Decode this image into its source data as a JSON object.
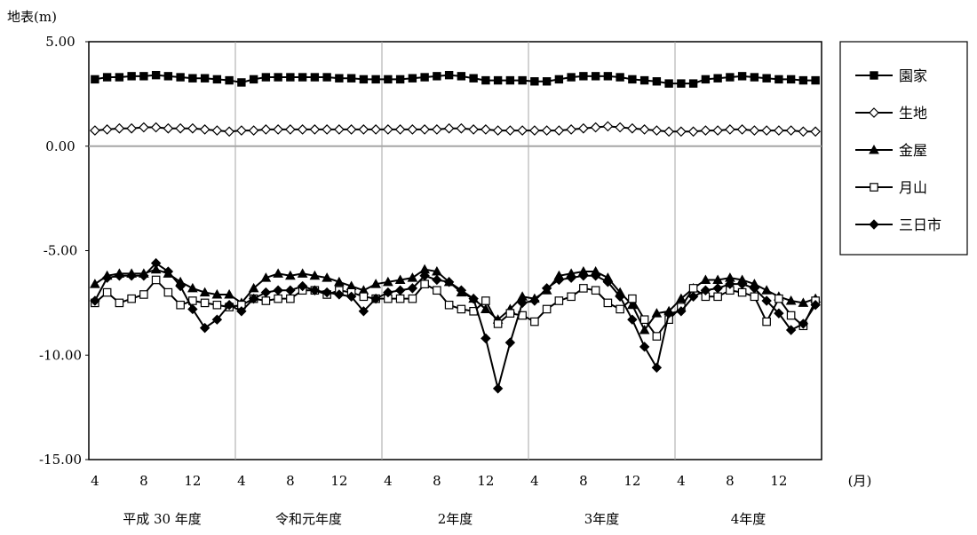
{
  "chart_data": {
    "type": "line",
    "ylabel": "地表(m)",
    "ylim": [
      -15,
      5
    ],
    "yticks": [
      {
        "value": 5,
        "label": "5.00"
      },
      {
        "value": 0,
        "label": "0.00"
      },
      {
        "value": -5,
        "label": "-5.00"
      },
      {
        "value": -10,
        "label": "-10.00"
      },
      {
        "value": -15,
        "label": "-15.00"
      }
    ],
    "x_unit": "(月)",
    "months": [
      4,
      5,
      6,
      7,
      8,
      9,
      10,
      11,
      12,
      1,
      2,
      3,
      4,
      5,
      6,
      7,
      8,
      9,
      10,
      11,
      12,
      1,
      2,
      3,
      4,
      5,
      6,
      7,
      8,
      9,
      10,
      11,
      12,
      1,
      2,
      3,
      4,
      5,
      6,
      7,
      8,
      9,
      10,
      11,
      12,
      1,
      2,
      3,
      4,
      5,
      6,
      7,
      8,
      9,
      10,
      11,
      12,
      1,
      2,
      3
    ],
    "xticks": [
      {
        "index": 0,
        "label": "4"
      },
      {
        "index": 4,
        "label": "8"
      },
      {
        "index": 8,
        "label": "12"
      },
      {
        "index": 12,
        "label": "4"
      },
      {
        "index": 16,
        "label": "8"
      },
      {
        "index": 20,
        "label": "12"
      },
      {
        "index": 24,
        "label": "4"
      },
      {
        "index": 28,
        "label": "8"
      },
      {
        "index": 32,
        "label": "12"
      },
      {
        "index": 36,
        "label": "4"
      },
      {
        "index": 40,
        "label": "8"
      },
      {
        "index": 44,
        "label": "12"
      },
      {
        "index": 48,
        "label": "4"
      },
      {
        "index": 52,
        "label": "8"
      },
      {
        "index": 56,
        "label": "12"
      }
    ],
    "fiscal_years": [
      {
        "label": "平成 30 年度",
        "start": 0,
        "end": 12
      },
      {
        "label": "令和元年度",
        "start": 12,
        "end": 24
      },
      {
        "label": "2年度",
        "start": 24,
        "end": 36
      },
      {
        "label": "3年度",
        "start": 36,
        "end": 48
      },
      {
        "label": "4年度",
        "start": 48,
        "end": 60
      }
    ],
    "year_dividers": [
      12,
      24,
      36,
      48
    ],
    "grid": false,
    "zero_line": true,
    "legend_position": "right",
    "series": [
      {
        "name": "園家",
        "marker": "square-filled",
        "values": [
          3.2,
          3.3,
          3.3,
          3.35,
          3.35,
          3.4,
          3.35,
          3.3,
          3.25,
          3.25,
          3.2,
          3.15,
          3.05,
          3.2,
          3.3,
          3.3,
          3.3,
          3.3,
          3.3,
          3.3,
          3.25,
          3.25,
          3.2,
          3.2,
          3.2,
          3.2,
          3.25,
          3.3,
          3.35,
          3.4,
          3.35,
          3.25,
          3.15,
          3.15,
          3.15,
          3.15,
          3.1,
          3.1,
          3.2,
          3.3,
          3.35,
          3.35,
          3.35,
          3.3,
          3.2,
          3.15,
          3.1,
          3.0,
          3.0,
          3.0,
          3.2,
          3.25,
          3.3,
          3.35,
          3.3,
          3.25,
          3.2,
          3.2,
          3.15,
          3.15
        ]
      },
      {
        "name": "生地",
        "marker": "diamond-open",
        "values": [
          0.75,
          0.8,
          0.85,
          0.85,
          0.9,
          0.9,
          0.85,
          0.85,
          0.85,
          0.8,
          0.75,
          0.7,
          0.75,
          0.75,
          0.8,
          0.8,
          0.8,
          0.8,
          0.8,
          0.8,
          0.8,
          0.8,
          0.8,
          0.8,
          0.8,
          0.8,
          0.8,
          0.8,
          0.8,
          0.85,
          0.85,
          0.8,
          0.8,
          0.75,
          0.75,
          0.75,
          0.75,
          0.75,
          0.75,
          0.8,
          0.85,
          0.9,
          0.95,
          0.9,
          0.85,
          0.8,
          0.75,
          0.7,
          0.7,
          0.7,
          0.75,
          0.75,
          0.8,
          0.8,
          0.75,
          0.75,
          0.75,
          0.75,
          0.7,
          0.7
        ]
      },
      {
        "name": "金屋",
        "marker": "triangle-filled",
        "values": [
          -6.6,
          -6.2,
          -6.1,
          -6.1,
          -6.1,
          -5.9,
          -6.1,
          -6.5,
          -6.8,
          -7.0,
          -7.1,
          -7.1,
          -7.5,
          -6.8,
          -6.3,
          -6.1,
          -6.2,
          -6.1,
          -6.2,
          -6.3,
          -6.5,
          -6.7,
          -6.9,
          -6.6,
          -6.5,
          -6.4,
          -6.3,
          -5.9,
          -6.0,
          -6.5,
          -7.0,
          -7.3,
          -7.8,
          -8.3,
          -7.8,
          -7.2,
          -7.3,
          -6.9,
          -6.2,
          -6.1,
          -6.0,
          -6.0,
          -6.3,
          -7.0,
          -7.6,
          -8.8,
          -8.0,
          -7.9,
          -7.3,
          -6.8,
          -6.4,
          -6.4,
          -6.3,
          -6.4,
          -6.6,
          -6.9,
          -7.2,
          -7.4,
          -7.5,
          -7.3
        ]
      },
      {
        "name": "月山",
        "marker": "square-open",
        "values": [
          -7.5,
          -7.0,
          -7.5,
          -7.3,
          -7.1,
          -6.4,
          -7.0,
          -7.6,
          -7.4,
          -7.5,
          -7.6,
          -7.7,
          -7.6,
          -7.3,
          -7.4,
          -7.3,
          -7.3,
          -6.9,
          -6.9,
          -7.1,
          -6.9,
          -7.0,
          -7.2,
          -7.3,
          -7.3,
          -7.3,
          -7.3,
          -6.6,
          -6.9,
          -7.6,
          -7.8,
          -7.9,
          -7.4,
          -8.5,
          -8.0,
          -8.1,
          -8.4,
          -7.8,
          -7.4,
          -7.2,
          -6.8,
          -6.9,
          -7.5,
          -7.8,
          -7.3,
          -8.3,
          -9.1,
          -8.3,
          -7.7,
          -6.8,
          -7.2,
          -7.2,
          -6.9,
          -7.0,
          -7.2,
          -8.4,
          -7.3,
          -8.1,
          -8.6,
          -7.4
        ]
      },
      {
        "name": "三日市",
        "marker": "diamond-filled",
        "values": [
          -7.4,
          -6.3,
          -6.2,
          -6.2,
          -6.2,
          -5.6,
          -6.0,
          -6.7,
          -7.8,
          -8.7,
          -8.3,
          -7.6,
          -7.9,
          -7.3,
          -7.0,
          -6.9,
          -6.9,
          -6.7,
          -6.9,
          -7.0,
          -7.1,
          -7.2,
          -7.9,
          -7.3,
          -7.0,
          -6.9,
          -6.8,
          -6.2,
          -6.4,
          -6.5,
          -6.9,
          -7.3,
          -9.2,
          -11.6,
          -9.4,
          -7.5,
          -7.4,
          -6.8,
          -6.4,
          -6.3,
          -6.2,
          -6.2,
          -6.5,
          -7.2,
          -8.3,
          -9.6,
          -10.6,
          -8.0,
          -7.9,
          -7.2,
          -6.9,
          -6.8,
          -6.6,
          -6.6,
          -6.8,
          -7.4,
          -8.0,
          -8.8,
          -8.5,
          -7.6
        ]
      }
    ]
  }
}
